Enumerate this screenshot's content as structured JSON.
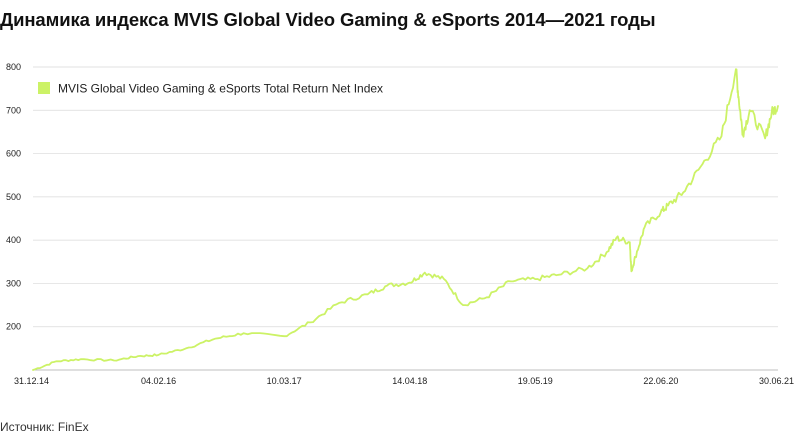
{
  "title": "Динамика индекса MVIS Global Video Gaming & eSports 2014—2021 годы",
  "source": "Источник: FinEx",
  "colors": {
    "line": "#ccf266",
    "grid": "#d9d9d9",
    "axis": "#bfbfbf"
  },
  "chart_data": {
    "type": "line",
    "title": "Динамика индекса MVIS Global Video Gaming & eSports 2014—2021 годы",
    "xlabel": "",
    "ylabel": "",
    "ylim": [
      100,
      800
    ],
    "y_ticks": [
      "200",
      "300",
      "400",
      "500",
      "600",
      "700",
      "800"
    ],
    "y_tick_values": [
      200,
      300,
      400,
      500,
      600,
      700,
      800
    ],
    "x_ticks": [
      "31.12.14",
      "04.02.16",
      "10.03.17",
      "14.04.18",
      "19.05.19",
      "22.06.20",
      "30.06.21"
    ],
    "grid": true,
    "legend_position": "top-left",
    "series": [
      {
        "name": "MVIS Global Video Gaming & eSports Total Return Net Index",
        "x": [
          "31.12.14",
          "15.03.15",
          "01.06.15",
          "15.09.15",
          "01.12.15",
          "04.02.16",
          "01.05.16",
          "01.08.16",
          "01.11.16",
          "10.03.17",
          "01.06.17",
          "01.09.17",
          "01.12.17",
          "01.02.18",
          "14.04.18",
          "01.06.18",
          "01.08.18",
          "01.10.18",
          "15.12.18",
          "01.03.19",
          "19.05.19",
          "01.08.19",
          "01.11.19",
          "01.01.20",
          "01.02.20",
          "15.03.20",
          "20.03.20",
          "01.04.20",
          "01.05.20",
          "22.06.20",
          "15.07.20",
          "01.09.20",
          "01.11.20",
          "01.01.21",
          "16.02.21",
          "25.02.21",
          "10.03.21",
          "01.04.21",
          "20.05.21",
          "10.06.21",
          "30.06.21"
        ],
        "values": [
          100,
          120,
          125,
          122,
          132,
          135,
          150,
          172,
          185,
          178,
          210,
          255,
          275,
          295,
          302,
          325,
          310,
          250,
          268,
          305,
          310,
          320,
          335,
          372,
          405,
          395,
          328,
          360,
          430,
          465,
          480,
          510,
          575,
          640,
          795,
          725,
          645,
          700,
          635,
          695,
          710
        ]
      }
    ]
  }
}
